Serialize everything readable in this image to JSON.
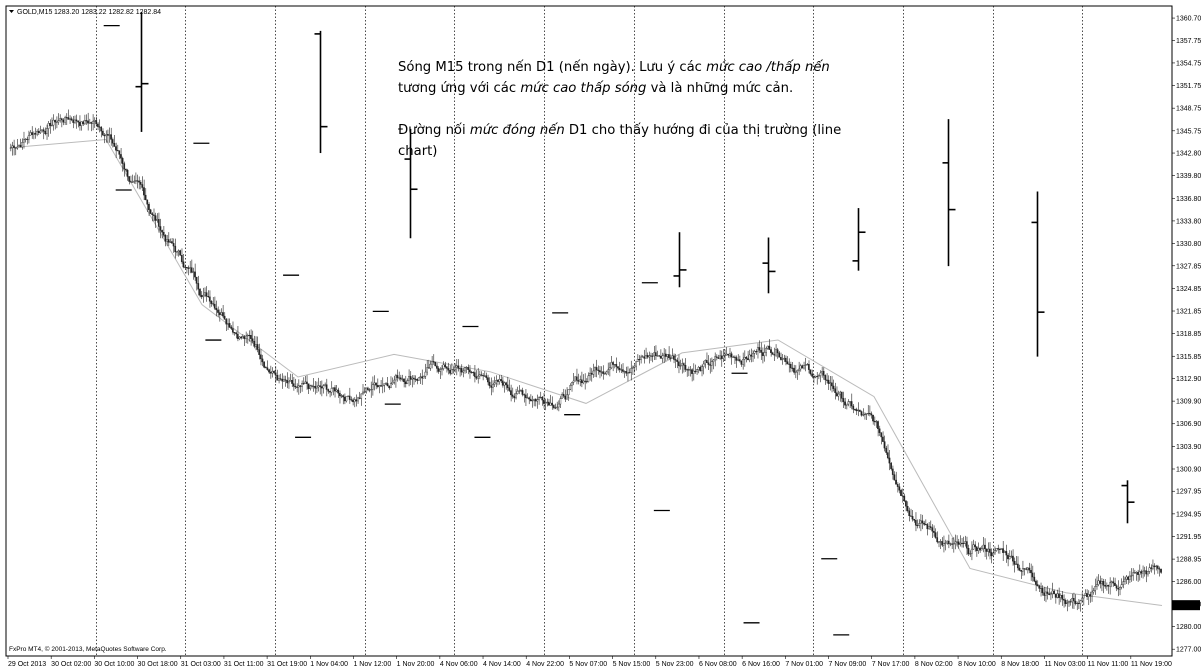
{
  "header": {
    "symbol": "GOLD,M15",
    "ohlc": "1283.20 1283.22 1282.82 1282.84"
  },
  "footer": {
    "copyright": "FxPro MT4, © 2001-2013, MetaQuotes Software Corp."
  },
  "annotation": {
    "p1": [
      {
        "t": "Sóng M15 trong nến D1 (nến ngày). Lưu ý các "
      },
      {
        "t": "mức cao /thấp nến",
        "i": true
      },
      {
        "t": " tương ứng với các "
      },
      {
        "t": "mức cao thấp sóng",
        "i": true
      },
      {
        "t": " và là những mức cản."
      }
    ],
    "p2": [
      {
        "t": "Đường nối "
      },
      {
        "t": "mức đóng nến",
        "i": true
      },
      {
        "t": " D1 cho thấy hướng đi của thị trường (line chart)"
      }
    ]
  },
  "chart_data": {
    "type": "candlestick",
    "symbol": "GOLD,M15",
    "current_price": "1282.84",
    "ylim": [
      1276.1,
      1362.3
    ],
    "y_ticks": [
      "1360.70",
      "1357.75",
      "1354.75",
      "1351.75",
      "1348.75",
      "1345.75",
      "1342.80",
      "1339.80",
      "1336.80",
      "1333.80",
      "1330.80",
      "1327.85",
      "1324.85",
      "1321.85",
      "1318.85",
      "1315.85",
      "1312.90",
      "1309.90",
      "1306.90",
      "1303.90",
      "1300.90",
      "1297.95",
      "1294.95",
      "1291.95",
      "1288.95",
      "1286.00",
      "1283.00",
      "1280.00",
      "1277.00"
    ],
    "x_ticks": [
      "29 Oct 2013",
      "30 Oct 02:00",
      "30 Oct 10:00",
      "30 Oct 18:00",
      "31 Oct 03:00",
      "31 Oct 11:00",
      "31 Oct 19:00",
      "1 Nov 04:00",
      "1 Nov 12:00",
      "1 Nov 20:00",
      "4 Nov 06:00",
      "4 Nov 14:00",
      "4 Nov 22:00",
      "5 Nov 07:00",
      "5 Nov 15:00",
      "5 Nov 23:00",
      "6 Nov 08:00",
      "6 Nov 16:00",
      "7 Nov 01:00",
      "7 Nov 09:00",
      "7 Nov 17:00",
      "8 Nov 02:00",
      "8 Nov 10:00",
      "8 Nov 18:00",
      "11 Nov 03:00",
      "11 Nov 11:00",
      "11 Nov 19:00"
    ],
    "day_separators": 13,
    "daily_bars": [
      {
        "open": 1351.6,
        "high": 1361.5,
        "low": 1345.6,
        "close": 1352.0
      },
      {
        "open": 1358.6,
        "high": 1359.0,
        "low": 1342.8,
        "close": 1346.3
      },
      {
        "open": 1342.0,
        "high": 1346.0,
        "low": 1331.5,
        "close": 1338.0
      },
      {
        "open": 1326.5,
        "high": 1332.3,
        "low": 1325.0,
        "close": 1327.3
      },
      {
        "open": 1328.2,
        "high": 1331.6,
        "low": 1324.2,
        "close": 1327.1
      },
      {
        "open": 1328.5,
        "high": 1335.5,
        "low": 1327.2,
        "close": 1332.3
      },
      {
        "open": 1341.5,
        "high": 1347.3,
        "low": 1327.8,
        "close": 1335.3
      },
      {
        "open": 1333.6,
        "high": 1337.7,
        "low": 1315.8,
        "close": 1321.7
      },
      {
        "open": 1298.7,
        "high": 1299.4,
        "low": 1293.7,
        "close": 1296.5
      }
    ],
    "daily_highs": [
      1359.7,
      1344.1,
      1326.6,
      1321.8,
      1319.8,
      1321.6,
      1325.6,
      1313.6,
      1289.0
    ],
    "daily_lows": [
      1337.9,
      1318.0,
      1305.1,
      1309.5,
      1305.1,
      1308.1,
      1295.4,
      1280.5,
      1278.9
    ],
    "close_line": [
      1343.5,
      1344.6,
      1322.7,
      1313.1,
      1316.1,
      1313.8,
      1309.6,
      1316.3,
      1318.0,
      1310.5,
      1287.7,
      1284.5,
      1282.8
    ]
  }
}
